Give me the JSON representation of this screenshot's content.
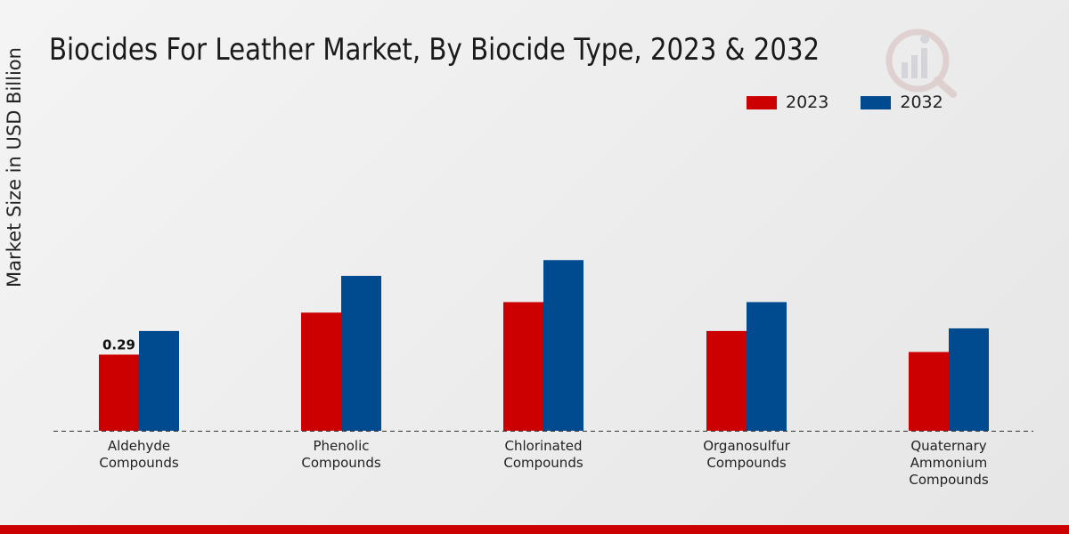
{
  "title": "Biocides For Leather Market, By Biocide Type, 2023 & 2032",
  "logo": {
    "icon": "market-research-logo-icon"
  },
  "chart_data": {
    "type": "bar",
    "title": "Biocides For Leather Market, By Biocide Type, 2023 & 2032",
    "xlabel": "",
    "ylabel": "Market Size in USD Billion",
    "categories": [
      [
        "Aldehyde",
        "Compounds"
      ],
      [
        "Phenolic",
        "Compounds"
      ],
      [
        "Chlorinated",
        "Compounds"
      ],
      [
        "Organosulfur",
        "Compounds"
      ],
      [
        "Quaternary",
        "Ammonium",
        "Compounds"
      ]
    ],
    "series": [
      {
        "name": "2023",
        "color": "#cc0000",
        "values": [
          0.29,
          0.45,
          0.49,
          0.38,
          0.3
        ]
      },
      {
        "name": "2032",
        "color": "#004a8f",
        "values": [
          0.38,
          0.59,
          0.65,
          0.49,
          0.39
        ]
      }
    ],
    "data_labels": [
      {
        "series": 0,
        "index": 0,
        "text": "0.29"
      }
    ],
    "ylim": [
      0,
      1.0
    ],
    "grid": false,
    "legend_position": "top-right"
  }
}
